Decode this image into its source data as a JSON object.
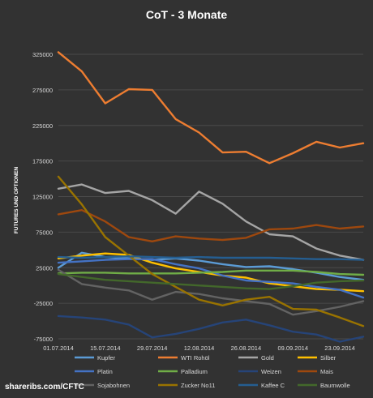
{
  "chart_data": {
    "type": "line",
    "title": "CoT - 3 Monate",
    "xlabel": "",
    "ylabel": "FUTURES UND OPTIONEN",
    "ylim": [
      -75000,
      350000
    ],
    "yticks": [
      325000,
      275000,
      225000,
      175000,
      125000,
      75000,
      25000,
      -25000,
      -75000
    ],
    "ytick_labels": [
      "325000",
      "275000",
      "225000",
      "175000",
      "125000",
      "75000",
      "25000",
      "-25000",
      "-75000"
    ],
    "x": [
      "01.07.2014",
      "08.07.2014",
      "15.07.2014",
      "22.07.2014",
      "29.07.2014",
      "05.08.2014",
      "12.08.2014",
      "19.08.2014",
      "26.08.2014",
      "02.09.2014",
      "09.09.2014",
      "16.09.2014",
      "23.09.2014",
      "30.09.2014"
    ],
    "xtick_labels": [
      "01.07.2014",
      "15.07.2014",
      "29.07.2014",
      "12.08.2014",
      "26.08.2014",
      "09.09.2014",
      "23.09.2014"
    ],
    "grid": true,
    "legend_position": "bottom",
    "series": [
      {
        "name": "Kupfer",
        "color": "#5b9bd5",
        "values": [
          25000,
          46000,
          40000,
          38000,
          36000,
          38000,
          35000,
          30000,
          26000,
          27000,
          23000,
          18000,
          12000,
          8000
        ]
      },
      {
        "name": "WTI Rohöl",
        "color": "#ed7d31",
        "values": [
          328000,
          301000,
          256000,
          276000,
          275000,
          234000,
          215000,
          187000,
          188000,
          172000,
          186000,
          202000,
          194000,
          200000
        ]
      },
      {
        "name": "Gold",
        "color": "#a5a5a5",
        "values": [
          136000,
          142000,
          130000,
          133000,
          120000,
          101000,
          132000,
          115000,
          90000,
          72000,
          69000,
          52000,
          42000,
          36000
        ]
      },
      {
        "name": "Silber",
        "color": "#ffc000",
        "values": [
          38000,
          42000,
          45000,
          43000,
          32000,
          24000,
          19000,
          14000,
          11000,
          3000,
          -1000,
          -5000,
          -6000,
          -8000
        ]
      },
      {
        "name": "Platin",
        "color": "#4472c4",
        "values": [
          32000,
          34000,
          36000,
          37000,
          37000,
          30000,
          24000,
          14000,
          7000,
          5000,
          3000,
          -2000,
          -6000,
          -17000
        ]
      },
      {
        "name": "Palladium",
        "color": "#70ad47",
        "values": [
          17000,
          18000,
          18000,
          17000,
          17000,
          17000,
          18000,
          19000,
          21000,
          21000,
          21000,
          19000,
          16000,
          15000
        ]
      },
      {
        "name": "Weizen",
        "color": "#264478",
        "values": [
          -43000,
          -45000,
          -48000,
          -55000,
          -73000,
          -68000,
          -61000,
          -52000,
          -48000,
          -56000,
          -65000,
          -69000,
          -79000,
          -72000
        ]
      },
      {
        "name": "Mais",
        "color": "#9e480e",
        "values": [
          100000,
          106000,
          90000,
          68000,
          62000,
          69000,
          66000,
          64000,
          67000,
          79000,
          80000,
          85000,
          80000,
          83000
        ]
      },
      {
        "name": "Sojabohnen",
        "color": "#636363",
        "values": [
          22000,
          2000,
          -3000,
          -7000,
          -20000,
          -9000,
          -12000,
          -18000,
          -22000,
          -26000,
          -41000,
          -36000,
          -30000,
          -22000
        ]
      },
      {
        "name": "Zucker No11",
        "color": "#997300",
        "values": [
          153000,
          114000,
          68000,
          42000,
          16000,
          -2000,
          -20000,
          -28000,
          -20000,
          -16000,
          -33000,
          -34000,
          -45000,
          -57000
        ]
      },
      {
        "name": "Kaffee C",
        "color": "#255e91",
        "values": [
          40000,
          39000,
          40000,
          41000,
          40000,
          39000,
          40000,
          39000,
          39000,
          39000,
          38000,
          37000,
          37000,
          36000
        ]
      },
      {
        "name": "Baumwolle",
        "color": "#43682b",
        "values": [
          16000,
          12000,
          8000,
          6000,
          4000,
          2000,
          0,
          -2000,
          -4000,
          -5000,
          -1000,
          4000,
          6000,
          7000
        ]
      }
    ]
  },
  "footer": {
    "source": "shareribs.com/CFTC"
  }
}
